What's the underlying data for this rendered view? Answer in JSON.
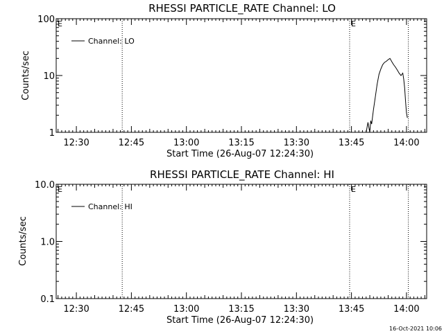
{
  "chart_data": [
    {
      "type": "line",
      "title": "RHESSI PARTICLE_RATE Channel: LO",
      "xlabel": "Start Time (26-Aug-07 12:24:30)",
      "ylabel": "Counts/sec",
      "y_scale": "log",
      "ylim": [
        1,
        100
      ],
      "y_ticks": [
        "1",
        "10",
        "100"
      ],
      "xlim": [
        "12:24:30",
        "14:05:30"
      ],
      "x_ticks": [
        "12:30",
        "12:45",
        "13:00",
        "13:15",
        "13:30",
        "13:45",
        "14:00"
      ],
      "legend": {
        "placement": "top-left",
        "entries": [
          "Channel: LO"
        ]
      },
      "flag_marks": [
        {
          "label": "E",
          "time": "12:24:30"
        },
        {
          "label": "E",
          "time": "13:44:30"
        }
      ],
      "vlines_dotted": [
        "12:42:30",
        "13:44:30",
        "14:00:30"
      ],
      "series": [
        {
          "name": "Channel: LO",
          "x": [
            "13:49:00",
            "13:49:30",
            "13:50:00",
            "13:50:15",
            "13:50:30",
            "13:51:00",
            "13:51:30",
            "13:52:00",
            "13:52:30",
            "13:53:00",
            "13:53:30",
            "13:54:00",
            "13:54:30",
            "13:55:00",
            "13:55:30",
            "13:56:00",
            "13:56:30",
            "13:57:00",
            "13:57:30",
            "13:58:00",
            "13:58:30",
            "13:59:00",
            "13:59:15",
            "13:59:30",
            "13:59:45",
            "14:00:00",
            "14:00:15"
          ],
          "y": [
            0.9,
            1.5,
            0.9,
            1.6,
            1.4,
            2.5,
            4.2,
            7.0,
            10.5,
            13.0,
            15.5,
            17.0,
            17.8,
            19.0,
            20.0,
            17.5,
            15.5,
            14.0,
            12.5,
            11.0,
            10.0,
            11.0,
            8.5,
            6.0,
            3.5,
            2.2,
            1.8
          ]
        }
      ]
    },
    {
      "type": "line",
      "title": "RHESSI PARTICLE_RATE Channel: HI",
      "xlabel": "Start Time (26-Aug-07 12:24:30)",
      "ylabel": "Counts/sec",
      "y_scale": "log",
      "ylim": [
        0.1,
        10
      ],
      "y_ticks": [
        "0.1",
        "1.0",
        "10.0"
      ],
      "xlim": [
        "12:24:30",
        "14:05:30"
      ],
      "x_ticks": [
        "12:30",
        "12:45",
        "13:00",
        "13:15",
        "13:30",
        "13:45",
        "14:00"
      ],
      "legend": {
        "placement": "top-left",
        "entries": [
          "Channel: HI"
        ]
      },
      "flag_marks": [
        {
          "label": "E",
          "time": "12:24:30"
        },
        {
          "label": "E",
          "time": "13:44:30"
        }
      ],
      "vlines_dotted": [
        "12:42:30",
        "13:44:30",
        "14:00:30"
      ],
      "series": [
        {
          "name": "Channel: HI",
          "x": [],
          "y": []
        }
      ]
    }
  ],
  "footer": {
    "timestamp": "16-Oct-2021 10:06"
  }
}
